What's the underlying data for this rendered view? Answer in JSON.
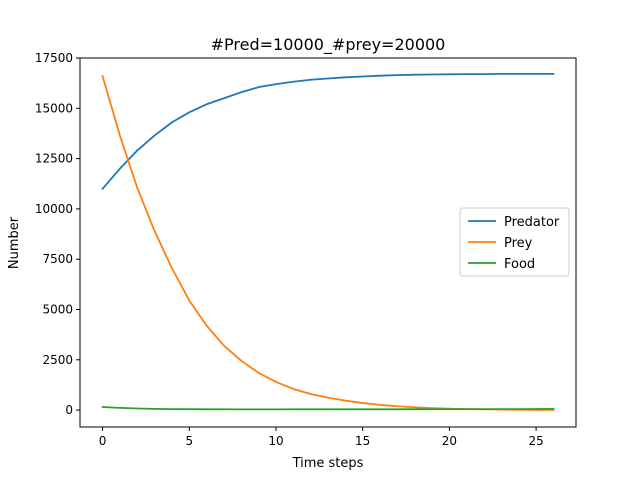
{
  "chart_data": {
    "type": "line",
    "title": "#Pred=10000_#prey=20000",
    "xlabel": "Time steps",
    "ylabel": "Number",
    "xlim": [
      -1.3,
      27.3
    ],
    "ylim": [
      -840,
      17500
    ],
    "xticks": [
      0,
      5,
      10,
      15,
      20,
      25
    ],
    "yticks": [
      0,
      2500,
      5000,
      7500,
      10000,
      12500,
      15000,
      17500
    ],
    "x": [
      0,
      1,
      2,
      3,
      4,
      5,
      6,
      7,
      8,
      9,
      10,
      11,
      12,
      13,
      14,
      15,
      16,
      17,
      18,
      19,
      20,
      21,
      22,
      23,
      24,
      25,
      26
    ],
    "grid": false,
    "legend_position": "center-right",
    "series": [
      {
        "name": "Predator",
        "color": "#1f77b4",
        "values": [
          11000,
          12000,
          12900,
          13650,
          14300,
          14800,
          15200,
          15500,
          15800,
          16050,
          16200,
          16320,
          16420,
          16480,
          16540,
          16580,
          16620,
          16650,
          16670,
          16680,
          16690,
          16700,
          16700,
          16710,
          16710,
          16710,
          16710
        ]
      },
      {
        "name": "Prey",
        "color": "#ff7f0e",
        "values": [
          16600,
          13650,
          11050,
          8900,
          7050,
          5450,
          4200,
          3200,
          2450,
          1850,
          1400,
          1050,
          800,
          620,
          470,
          350,
          260,
          190,
          140,
          100,
          70,
          50,
          40,
          30,
          20,
          15,
          10
        ]
      },
      {
        "name": "Food",
        "color": "#2ca02c",
        "values": [
          150,
          110,
          80,
          60,
          50,
          45,
          40,
          40,
          35,
          35,
          35,
          40,
          40,
          40,
          40,
          40,
          40,
          40,
          45,
          45,
          45,
          45,
          50,
          50,
          50,
          55,
          60
        ]
      }
    ]
  }
}
